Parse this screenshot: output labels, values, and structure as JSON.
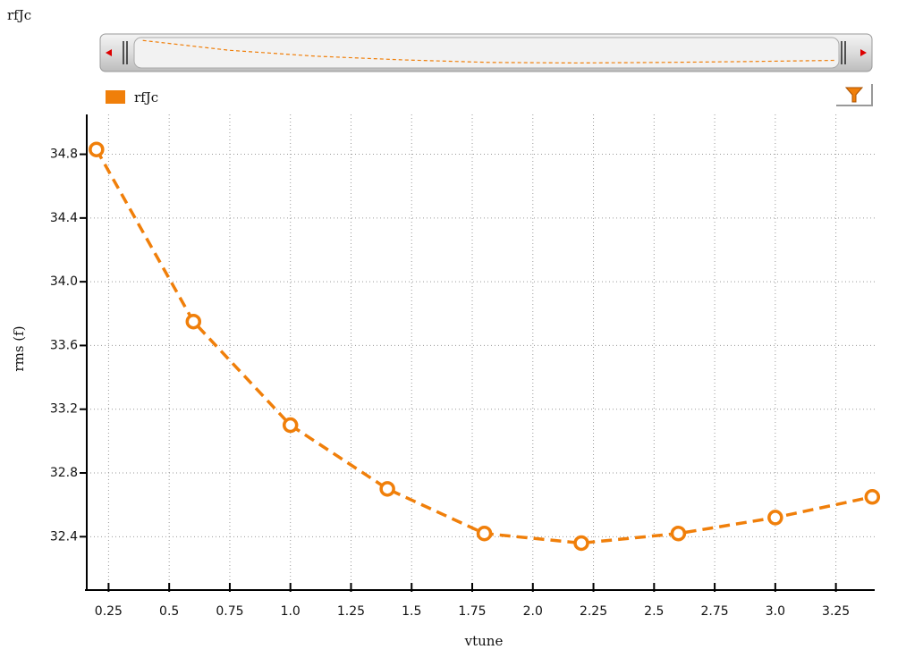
{
  "chart_data": {
    "type": "line",
    "title": "rfJc",
    "x_label": "vtune",
    "y_label": "rms (f)",
    "x": [
      0.2,
      0.6,
      1.0,
      1.4,
      1.8,
      2.2,
      2.6,
      3.0,
      3.4
    ],
    "series": [
      {
        "name": "rfJc",
        "color": "#f07f0a",
        "values": [
          34.83,
          33.75,
          33.1,
          32.7,
          32.42,
          32.36,
          32.42,
          32.52,
          32.65
        ]
      }
    ],
    "xlim": [
      0.16,
      3.41
    ],
    "ylim": [
      32.11,
      35.05
    ],
    "xticks": [
      0.25,
      0.5,
      0.75,
      {
        "value": 1.0,
        "label": "1.0"
      },
      1.25,
      1.5,
      1.75,
      {
        "value": 2.0,
        "label": "2.0"
      },
      2.25,
      2.5,
      2.75,
      {
        "value": 3.0,
        "label": "3.0"
      },
      3.25
    ],
    "yticks": [
      32.4,
      32.8,
      33.2,
      33.6,
      {
        "value": 34.0,
        "label": "34.0"
      },
      34.4,
      34.8
    ],
    "grid": true,
    "line_style": "dashed",
    "markers": true
  }
}
